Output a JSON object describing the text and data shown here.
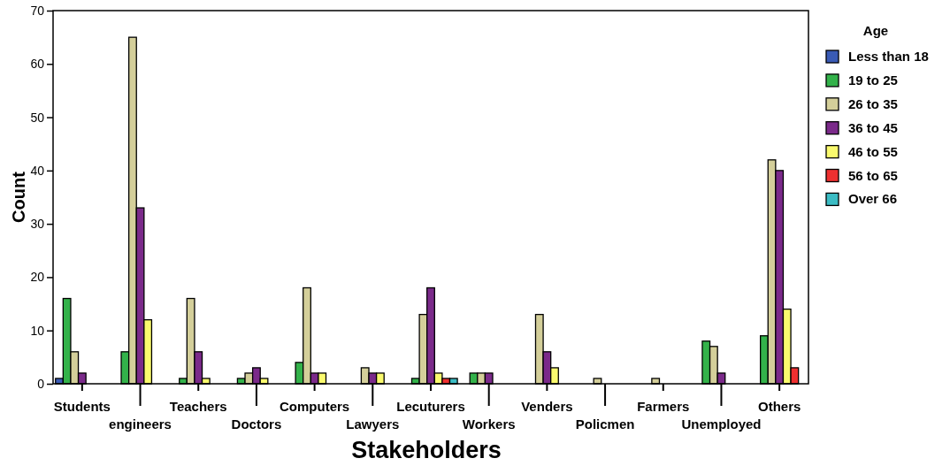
{
  "chart_data": {
    "type": "bar",
    "xlabel": "Stakeholders",
    "ylabel": "Count",
    "legend_title": "Age",
    "legend": "right",
    "grid": false,
    "categories": [
      "Students",
      "engineers",
      "Teachers",
      "Doctors",
      "Computers",
      "Lawyers",
      "Lecuturers",
      "Workers",
      "Venders",
      "Policmen",
      "Farmers",
      "Unemployed",
      "Others"
    ],
    "ylim": [
      0,
      70
    ],
    "yticks": [
      0,
      10,
      20,
      30,
      40,
      50,
      60,
      70
    ],
    "series": [
      {
        "name": "Less than 18",
        "color": "#3a5bb5",
        "values": [
          1,
          null,
          null,
          null,
          null,
          null,
          null,
          null,
          null,
          null,
          null,
          null,
          null
        ]
      },
      {
        "name": "19 to 25",
        "color": "#33b24a",
        "values": [
          16,
          6,
          1,
          1,
          4,
          null,
          1,
          2,
          null,
          null,
          null,
          8,
          9
        ]
      },
      {
        "name": "26 to 35",
        "color": "#d4cf9a",
        "values": [
          6,
          65,
          16,
          2,
          18,
          3,
          13,
          2,
          13,
          1,
          1,
          7,
          42
        ]
      },
      {
        "name": "36 to 45",
        "color": "#7b2a8a",
        "values": [
          2,
          33,
          6,
          3,
          2,
          2,
          18,
          2,
          6,
          null,
          null,
          2,
          40
        ]
      },
      {
        "name": "46 to 55",
        "color": "#fafa6e",
        "values": [
          null,
          12,
          1,
          1,
          2,
          2,
          2,
          null,
          3,
          null,
          null,
          null,
          14
        ]
      },
      {
        "name": "56 to 65",
        "color": "#ee3030",
        "values": [
          null,
          null,
          null,
          null,
          null,
          null,
          1,
          null,
          null,
          null,
          null,
          null,
          3
        ]
      },
      {
        "name": "Over 66",
        "color": "#3bbcc4",
        "values": [
          null,
          null,
          null,
          null,
          null,
          null,
          1,
          null,
          null,
          null,
          null,
          null,
          null
        ]
      }
    ]
  }
}
